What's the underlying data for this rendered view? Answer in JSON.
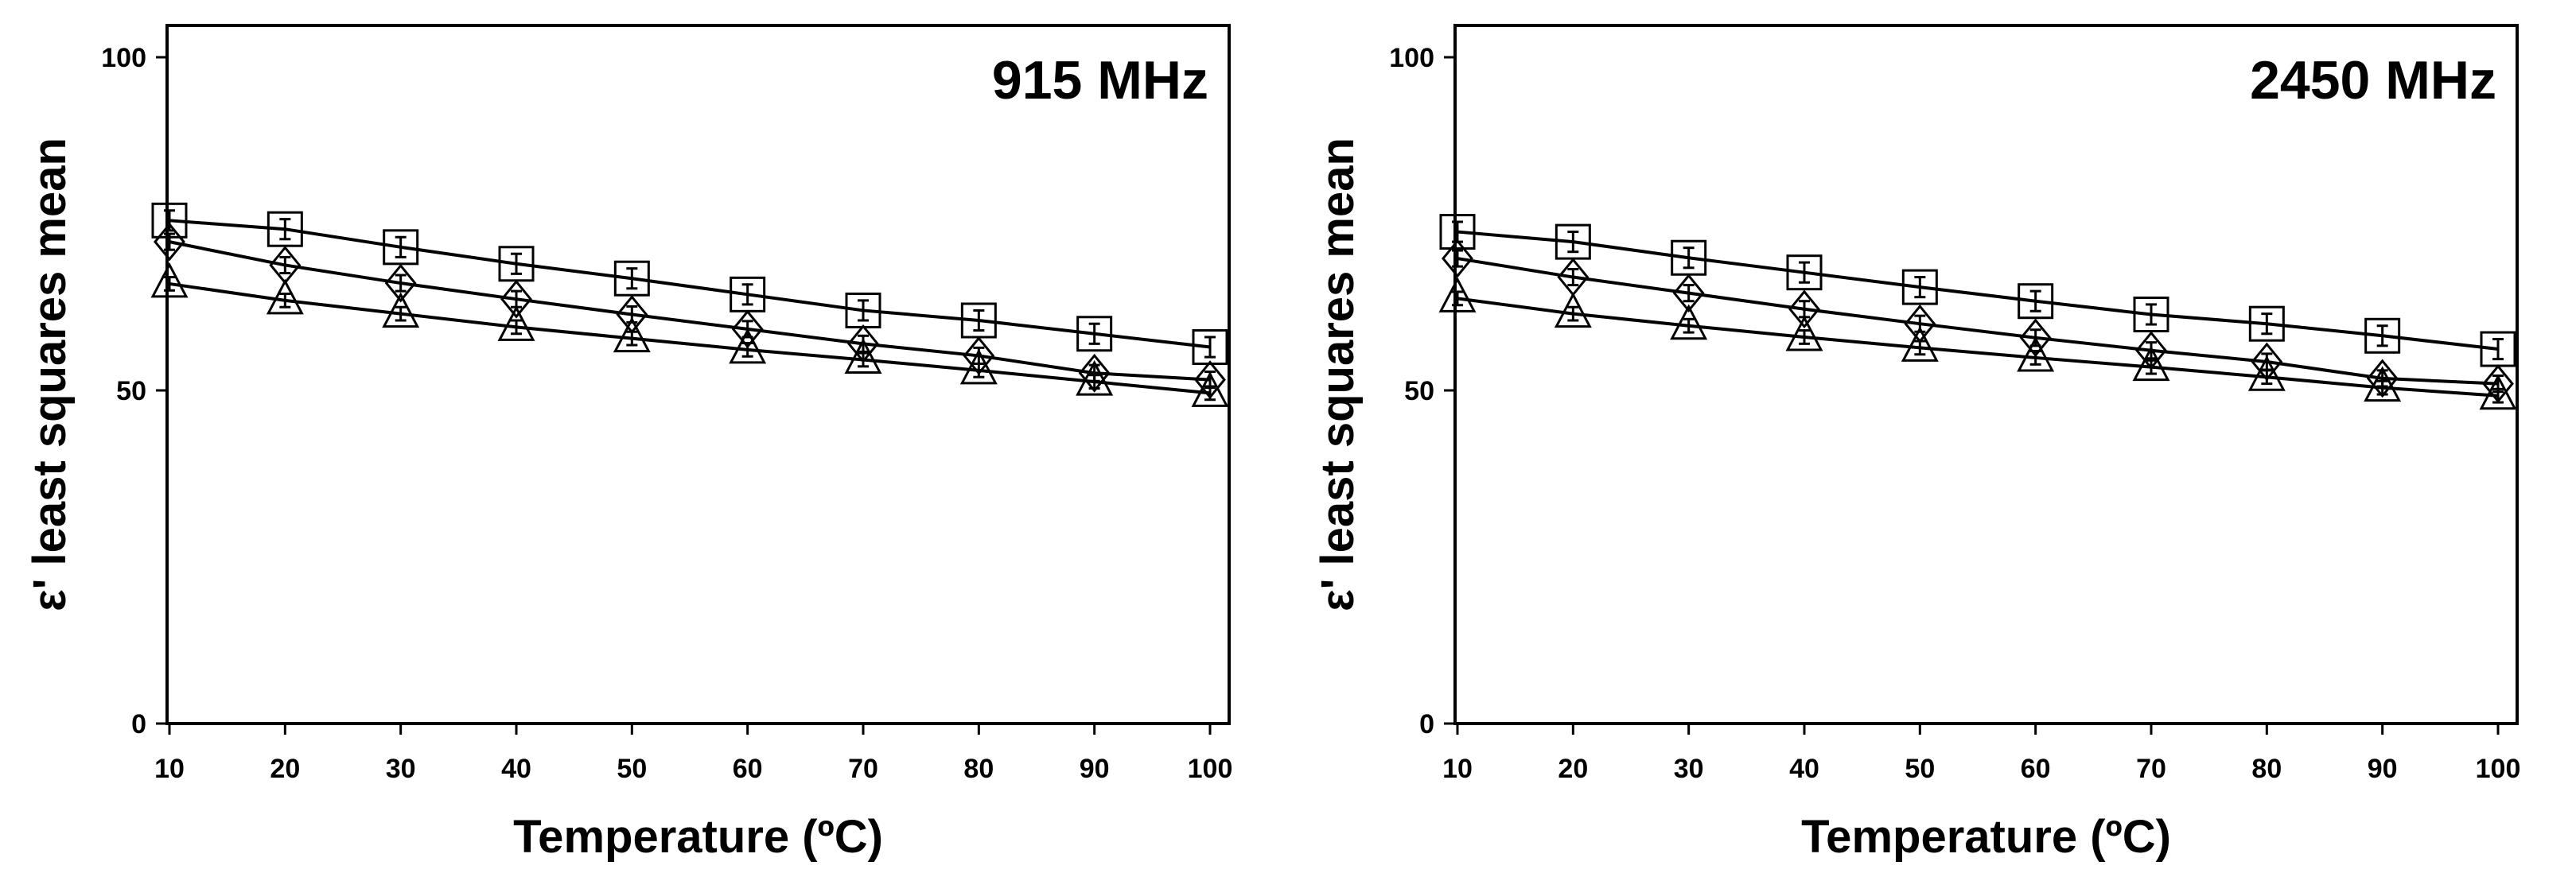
{
  "chart_data": [
    {
      "type": "line",
      "title": "915 MHz",
      "xlabel": "Temperature (ºC)",
      "ylabel": "ε' least squares mean",
      "x": [
        10,
        20,
        30,
        40,
        50,
        60,
        70,
        80,
        90,
        100
      ],
      "xticks": [
        "10",
        "20",
        "30",
        "40",
        "50",
        "60",
        "70",
        "80",
        "90",
        "100"
      ],
      "yticks": [
        "0",
        "50",
        "100"
      ],
      "xlim": [
        10,
        100
      ],
      "ylim": [
        0,
        100
      ],
      "grid": false,
      "legend": "none",
      "series": [
        {
          "marker": "square",
          "values": [
            75.5,
            74.2,
            71.5,
            69.0,
            66.8,
            64.4,
            62.0,
            60.5,
            58.5,
            56.5
          ],
          "error": [
            1.5,
            1.5,
            1.5,
            1.5,
            1.5,
            1.5,
            1.5,
            1.5,
            1.5,
            1.5
          ]
        },
        {
          "marker": "diamond",
          "values": [
            72.3,
            68.8,
            66.1,
            63.7,
            61.4,
            59.2,
            57.0,
            55.2,
            52.6,
            51.6
          ],
          "error": [
            1.2,
            1.2,
            1.2,
            1.2,
            1.2,
            1.2,
            1.2,
            1.2,
            1.2,
            1.2
          ]
        },
        {
          "marker": "triangle",
          "values": [
            66.0,
            63.5,
            61.5,
            59.5,
            57.8,
            56.1,
            54.6,
            53.0,
            51.3,
            49.6
          ],
          "error": [
            1.0,
            1.0,
            1.0,
            1.0,
            1.0,
            1.0,
            1.0,
            1.0,
            1.0,
            1.0
          ]
        }
      ]
    },
    {
      "type": "line",
      "title": "2450 MHz",
      "xlabel": "Temperature (ºC)",
      "ylabel": "ε' least squares mean",
      "x": [
        10,
        20,
        30,
        40,
        50,
        60,
        70,
        80,
        90,
        100
      ],
      "xticks": [
        "10",
        "20",
        "30",
        "40",
        "50",
        "60",
        "70",
        "80",
        "90",
        "100"
      ],
      "yticks": [
        "0",
        "50",
        "100"
      ],
      "xlim": [
        10,
        100
      ],
      "ylim": [
        0,
        100
      ],
      "grid": false,
      "legend": "none",
      "series": [
        {
          "marker": "square",
          "values": [
            73.8,
            72.3,
            69.9,
            67.7,
            65.5,
            63.4,
            61.4,
            60.0,
            58.2,
            56.2
          ],
          "error": [
            1.5,
            1.5,
            1.5,
            1.5,
            1.5,
            1.5,
            1.5,
            1.5,
            1.5,
            1.5
          ]
        },
        {
          "marker": "diamond",
          "values": [
            69.8,
            67.0,
            64.6,
            62.2,
            60.0,
            57.9,
            56.0,
            54.3,
            51.8,
            51.0
          ],
          "error": [
            1.2,
            1.2,
            1.2,
            1.2,
            1.2,
            1.2,
            1.2,
            1.2,
            1.2,
            1.2
          ]
        },
        {
          "marker": "triangle",
          "values": [
            63.8,
            61.5,
            59.7,
            58.0,
            56.4,
            54.9,
            53.5,
            52.0,
            50.4,
            49.2
          ],
          "error": [
            1.0,
            1.0,
            1.0,
            1.0,
            1.0,
            1.0,
            1.0,
            1.0,
            1.0,
            1.0
          ]
        }
      ]
    }
  ]
}
